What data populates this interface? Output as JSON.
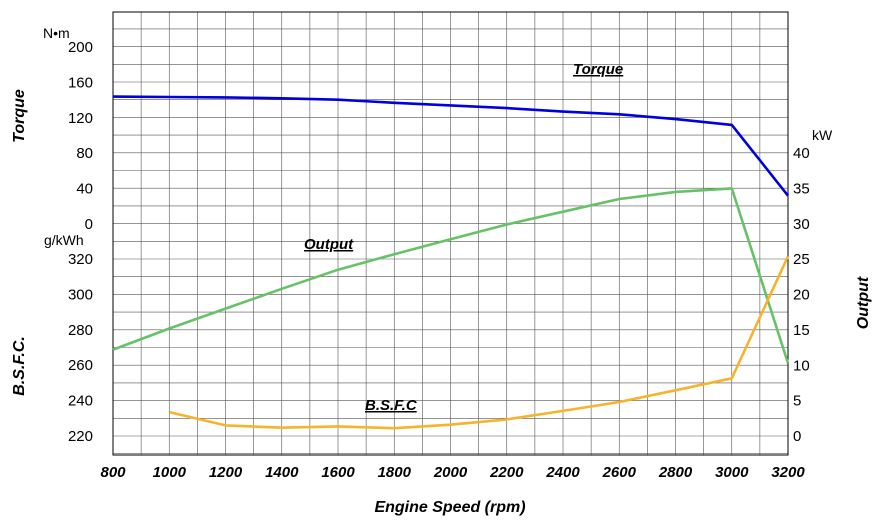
{
  "chart_data": {
    "type": "line",
    "xlabel": "Engine Speed  (rpm)",
    "x_ticks": [
      "800",
      "1000",
      "1200",
      "1400",
      "1600",
      "1800",
      "2000",
      "2200",
      "2400",
      "2600",
      "2800",
      "3000",
      "3200"
    ],
    "xlim": [
      800,
      3200
    ],
    "left_axes": {
      "torque": {
        "label": "Torque",
        "unit": "N•m",
        "ticks": [
          "0",
          "40",
          "80",
          "120",
          "160",
          "200"
        ],
        "ylim": [
          0,
          200
        ]
      },
      "bsfc": {
        "label": "B.S.F.C.",
        "unit": "g/kWh",
        "ticks": [
          "220",
          "240",
          "260",
          "280",
          "300",
          "320"
        ],
        "ylim": [
          220,
          320
        ]
      }
    },
    "right_axis": {
      "label": "Output",
      "unit": "kW",
      "ticks": [
        "0",
        "5",
        "10",
        "15",
        "20",
        "25",
        "30",
        "35",
        "40"
      ],
      "ylim": [
        0,
        40
      ]
    },
    "grid": true,
    "series": [
      {
        "name": "Torque",
        "axis": "torque",
        "color": "#0000dd",
        "x": [
          800,
          1000,
          1200,
          1400,
          1600,
          1800,
          2000,
          2200,
          2400,
          2600,
          2800,
          3000,
          3200
        ],
        "y": [
          144,
          143.5,
          143,
          142,
          140.5,
          137,
          134,
          131,
          127,
          124,
          118.5,
          112,
          32
        ]
      },
      {
        "name": "Output",
        "axis": "output",
        "color": "#66c266",
        "x": [
          800,
          1000,
          1200,
          1400,
          1600,
          1800,
          2000,
          2200,
          2400,
          2600,
          2800,
          3000,
          3200
        ],
        "y": [
          12.2,
          15.2,
          18,
          20.8,
          23.5,
          25.7,
          27.8,
          29.9,
          31.7,
          33.5,
          34.5,
          35,
          10.3
        ]
      },
      {
        "name": "B.S.F.C",
        "axis": "bsfc",
        "color": "#f7b32b",
        "x": [
          1000,
          1200,
          1400,
          1600,
          1800,
          2000,
          2200,
          2400,
          2600,
          2800,
          3000,
          3200
        ],
        "y": [
          233.5,
          226,
          224.7,
          225.4,
          224.4,
          226.4,
          229.4,
          234.2,
          239.2,
          245.8,
          252.6,
          321.5
        ]
      }
    ]
  }
}
